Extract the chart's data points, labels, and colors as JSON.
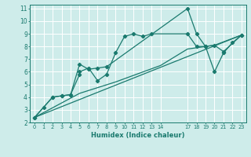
{
  "xlabel": "Humidex (Indice chaleur)",
  "bg_color": "#ceecea",
  "line_color": "#1a7a6e",
  "grid_color": "#ffffff",
  "xlim": [
    -0.5,
    23.5
  ],
  "ylim": [
    2,
    11.3
  ],
  "xtick_positions": [
    0,
    1,
    2,
    3,
    4,
    5,
    6,
    7,
    8,
    9,
    10,
    11,
    12,
    13,
    14,
    17,
    18,
    19,
    20,
    21,
    22,
    23
  ],
  "xtick_labels": [
    "0",
    "1",
    "2",
    "3",
    "4",
    "5",
    "6",
    "7",
    "8",
    "9",
    "10",
    "11",
    "12",
    "13",
    "14",
    "17",
    "18",
    "19",
    "20",
    "21",
    "22",
    "23"
  ],
  "ytick_positions": [
    2,
    3,
    4,
    5,
    6,
    7,
    8,
    9,
    10,
    11
  ],
  "ytick_labels": [
    "2",
    "3",
    "4",
    "5",
    "6",
    "7",
    "8",
    "9",
    "10",
    "11"
  ],
  "series1_x": [
    0,
    1,
    2,
    3,
    4,
    5,
    5,
    6,
    7,
    8,
    9,
    10,
    11,
    12,
    13,
    17,
    18,
    19,
    20,
    21,
    22,
    23
  ],
  "series1_y": [
    2.4,
    3.2,
    4.0,
    4.1,
    4.2,
    5.8,
    6.0,
    6.3,
    5.3,
    5.8,
    7.5,
    8.8,
    9.0,
    8.8,
    9.0,
    9.0,
    8.0,
    8.0,
    6.0,
    7.5,
    8.3,
    8.9
  ],
  "series2_x": [
    0,
    2,
    3,
    4,
    5,
    6,
    7,
    8,
    17,
    18,
    19,
    20,
    21,
    22,
    23
  ],
  "series2_y": [
    2.4,
    4.0,
    4.1,
    4.2,
    6.6,
    6.2,
    6.3,
    6.4,
    11.0,
    9.0,
    8.0,
    8.1,
    7.6,
    null,
    8.9
  ],
  "series3_x": [
    0,
    23
  ],
  "series3_y": [
    2.4,
    8.9
  ],
  "series4_x": [
    0,
    5,
    9,
    14,
    17,
    20,
    23
  ],
  "series4_y": [
    2.4,
    4.3,
    5.2,
    6.5,
    7.8,
    8.1,
    8.9
  ]
}
